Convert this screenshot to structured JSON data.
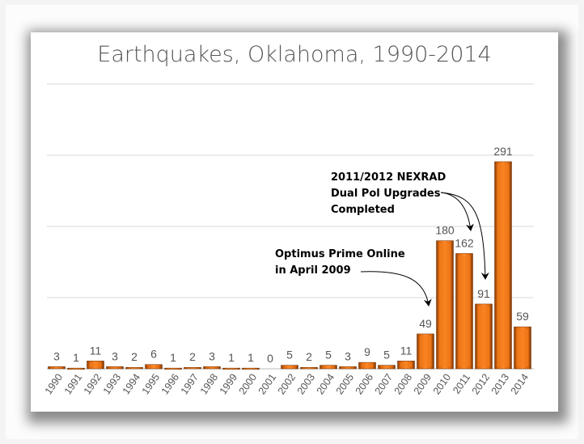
{
  "chart_data": {
    "type": "bar",
    "title": "Earthquakes, Oklahoma, 1990-2014",
    "xlabel": "",
    "ylabel": "",
    "ylim": [
      0,
      400
    ],
    "grid": true,
    "gridlines": [
      0,
      100,
      200,
      300,
      400
    ],
    "categories": [
      "1990",
      "1991",
      "1992",
      "1993",
      "1994",
      "1995",
      "1996",
      "1997",
      "1998",
      "1999",
      "2000",
      "2001",
      "2002",
      "2003",
      "2004",
      "2005",
      "2006",
      "2007",
      "2008",
      "2009",
      "2010",
      "2011",
      "2012",
      "2013",
      "2014"
    ],
    "values": [
      3,
      1,
      11,
      3,
      2,
      6,
      1,
      2,
      3,
      1,
      1,
      0,
      5,
      2,
      5,
      3,
      9,
      5,
      11,
      49,
      180,
      162,
      91,
      291,
      59
    ],
    "bar_color": "#f07818",
    "annotations": [
      {
        "text": "Optimus Prime Online\nin April 2009",
        "lines": [
          "Optimus Prime Online",
          "in April 2009"
        ],
        "points_to": "2009"
      },
      {
        "text": "2011/2012 NEXRAD\nDual Pol Upgrades\nCompleted",
        "lines": [
          "2011/2012 NEXRAD",
          "Dual Pol Upgrades",
          "Completed"
        ],
        "points_to": [
          "2011",
          "2012"
        ]
      }
    ]
  }
}
